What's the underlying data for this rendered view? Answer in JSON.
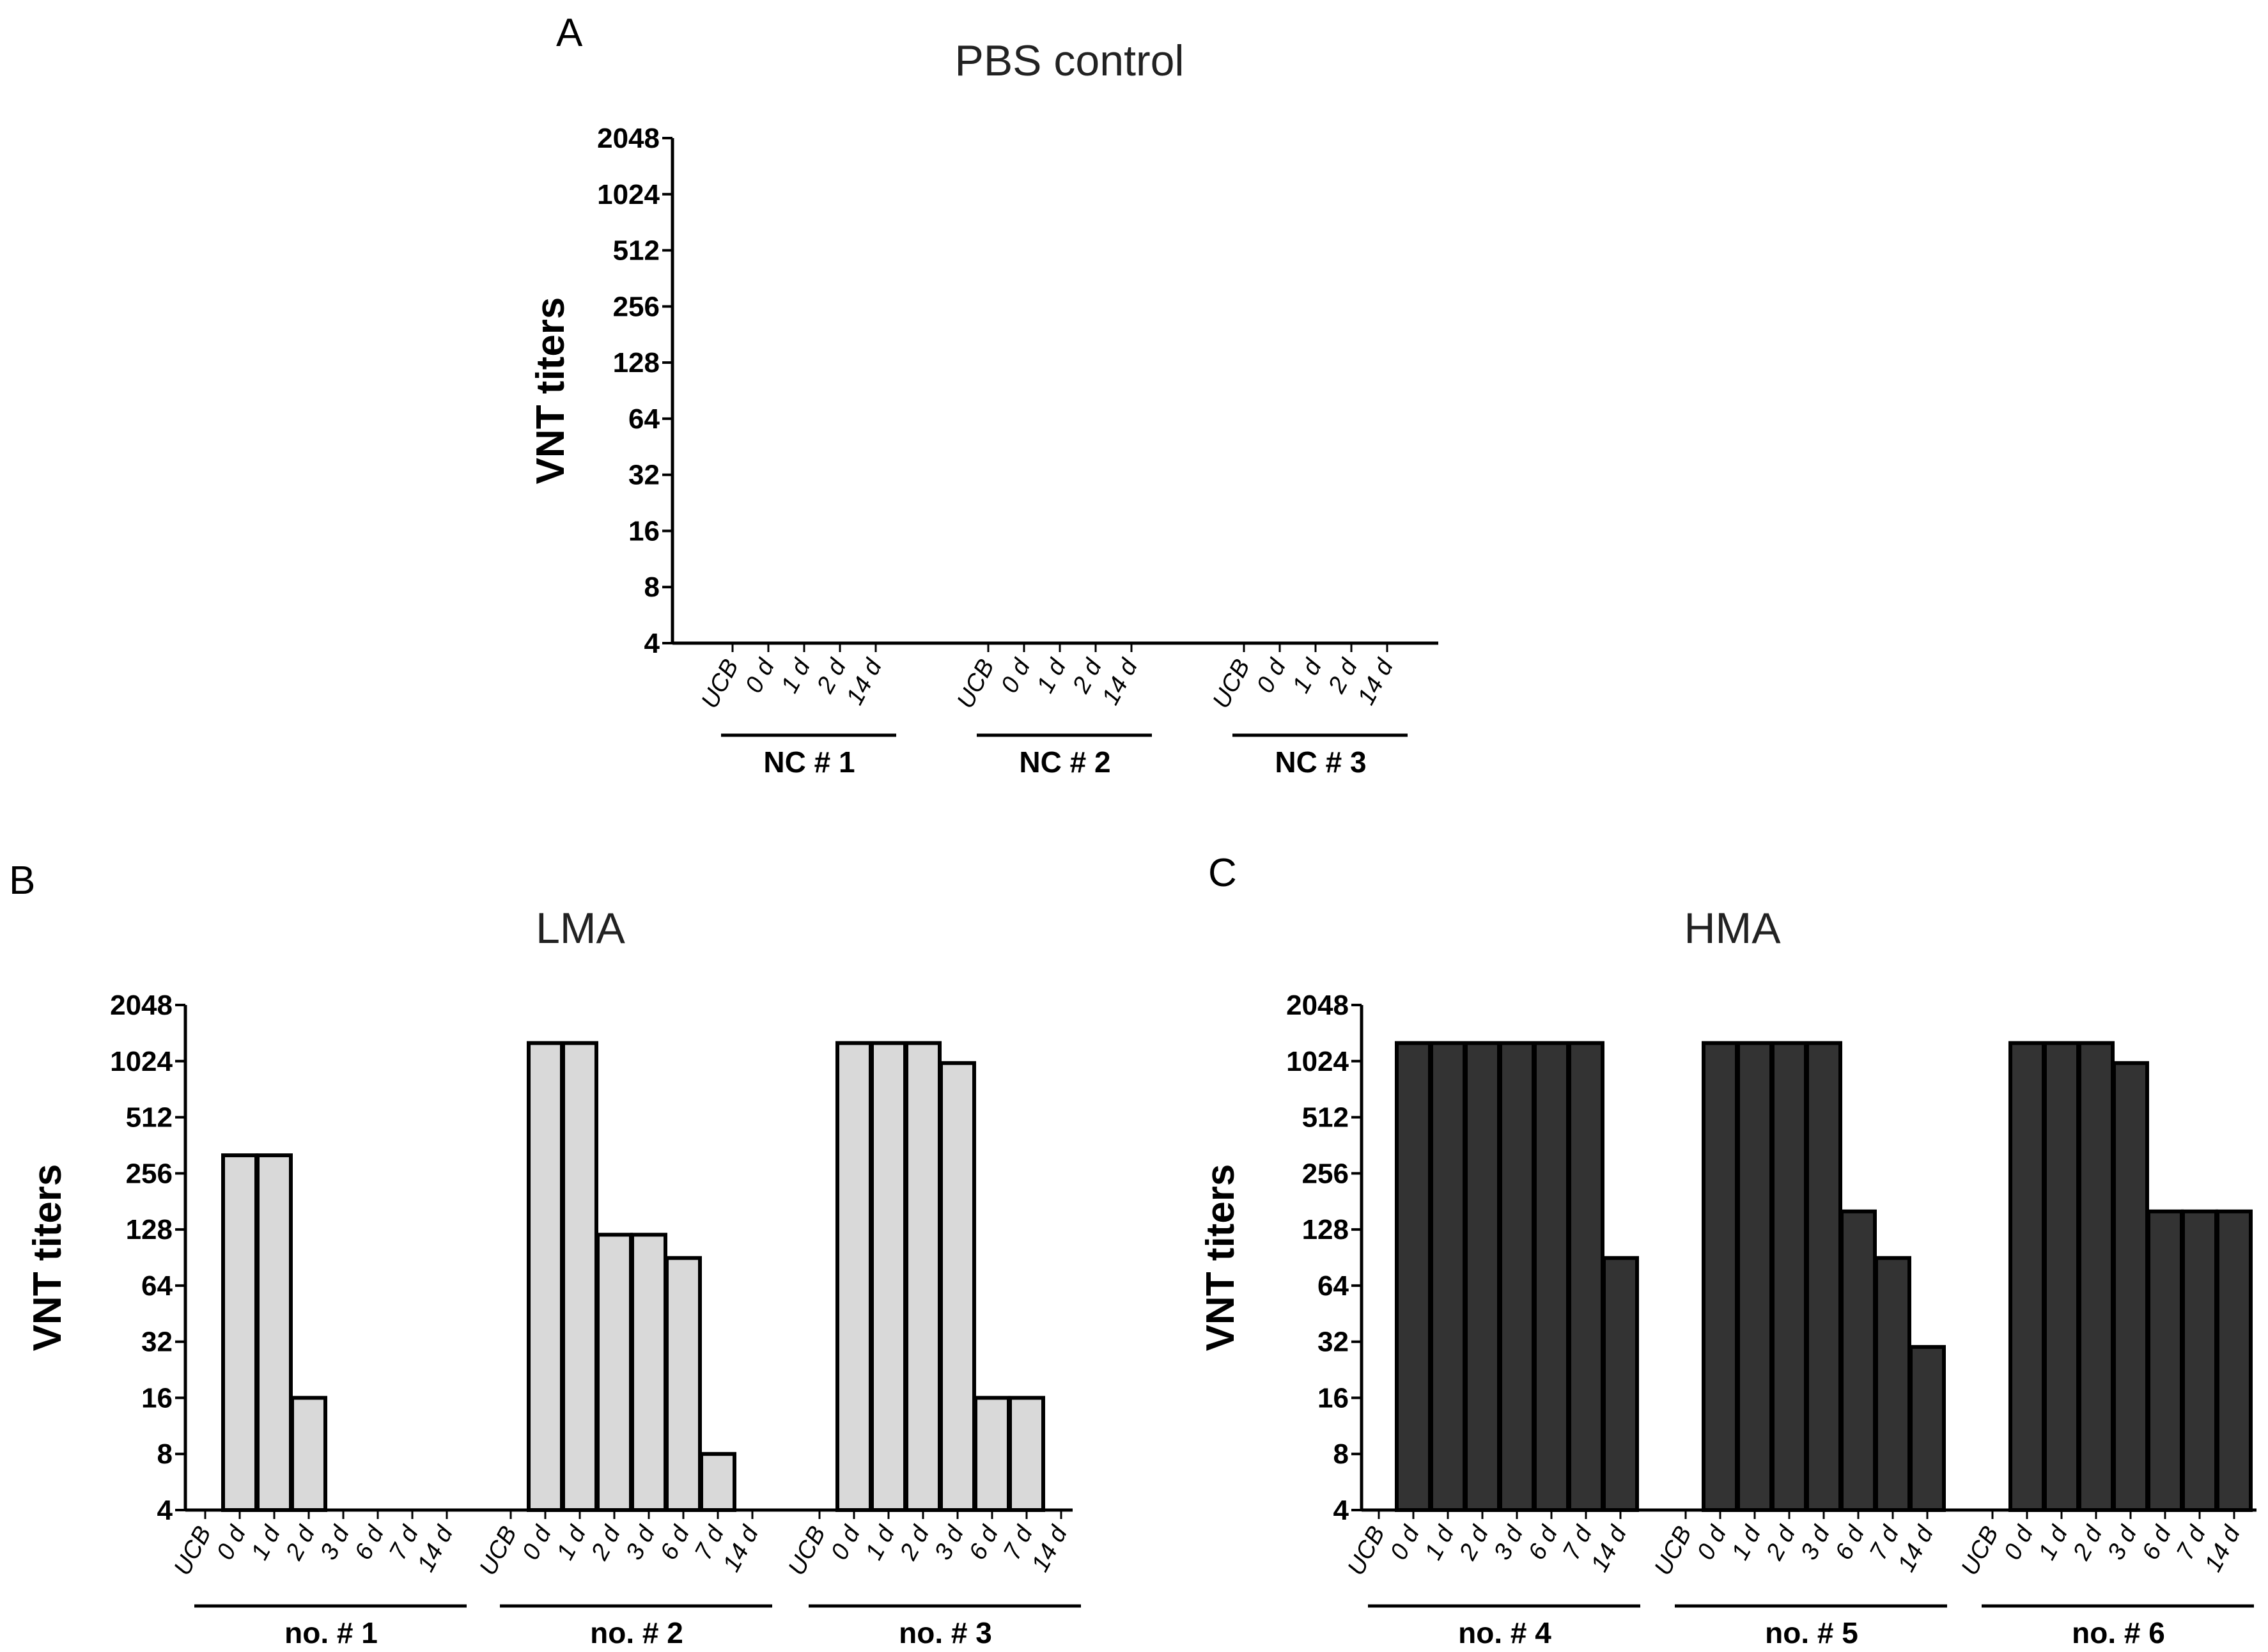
{
  "colors": {
    "lma_fill": "#d9d9d9",
    "hma_fill": "#333333",
    "stroke": "#000000"
  },
  "chart_data": [
    {
      "panel": "A",
      "type": "bar",
      "title": "PBS control",
      "ylabel": "VNT titers",
      "xlabel": "",
      "yscale": "log2",
      "ylim": [
        4,
        2048
      ],
      "yticks": [
        "2048",
        "1024",
        "512",
        "256",
        "128",
        "64",
        "32",
        "16",
        "8",
        "4"
      ],
      "categories": [
        "UCB",
        "0 d",
        "1 d",
        "2 d",
        "14 d"
      ],
      "groups": [
        {
          "name": "NC # 1",
          "values": [
            null,
            null,
            null,
            null,
            null
          ]
        },
        {
          "name": "NC # 2",
          "values": [
            null,
            null,
            null,
            null,
            null
          ]
        },
        {
          "name": "NC # 3",
          "values": [
            null,
            null,
            null,
            null,
            null
          ]
        }
      ]
    },
    {
      "panel": "B",
      "type": "bar",
      "title": "LMA",
      "ylabel": "VNT titers",
      "xlabel": "",
      "yscale": "log2",
      "ylim": [
        4,
        2048
      ],
      "yticks": [
        "2048",
        "1024",
        "512",
        "256",
        "128",
        "64",
        "32",
        "16",
        "8",
        "4"
      ],
      "fill": "lma_fill",
      "categories": [
        "UCB",
        "0 d",
        "1 d",
        "2 d",
        "3 d",
        "6 d",
        "7 d",
        "14 d"
      ],
      "groups": [
        {
          "name": "no. # 1",
          "values": [
            null,
            320,
            320,
            16,
            null,
            null,
            null,
            null
          ]
        },
        {
          "name": "no. # 2",
          "values": [
            null,
            1280,
            1280,
            120,
            120,
            90,
            8,
            null
          ]
        },
        {
          "name": "no. # 3",
          "values": [
            null,
            1280,
            1280,
            1280,
            1000,
            16,
            16,
            null
          ]
        }
      ]
    },
    {
      "panel": "C",
      "type": "bar",
      "title": "HMA",
      "ylabel": "VNT titers",
      "xlabel": "",
      "yscale": "log2",
      "ylim": [
        4,
        2048
      ],
      "yticks": [
        "2048",
        "1024",
        "512",
        "256",
        "128",
        "64",
        "32",
        "16",
        "8",
        "4"
      ],
      "fill": "hma_fill",
      "categories": [
        "UCB",
        "0 d",
        "1 d",
        "2 d",
        "3 d",
        "6 d",
        "7 d",
        "14 d"
      ],
      "groups": [
        {
          "name": "no. # 4",
          "values": [
            null,
            1280,
            1280,
            1280,
            1280,
            1280,
            1280,
            90
          ]
        },
        {
          "name": "no. # 5",
          "values": [
            null,
            1280,
            1280,
            1280,
            1280,
            160,
            90,
            30
          ]
        },
        {
          "name": "no. # 6",
          "values": [
            null,
            1280,
            1280,
            1280,
            1000,
            160,
            160,
            160
          ]
        }
      ]
    }
  ]
}
